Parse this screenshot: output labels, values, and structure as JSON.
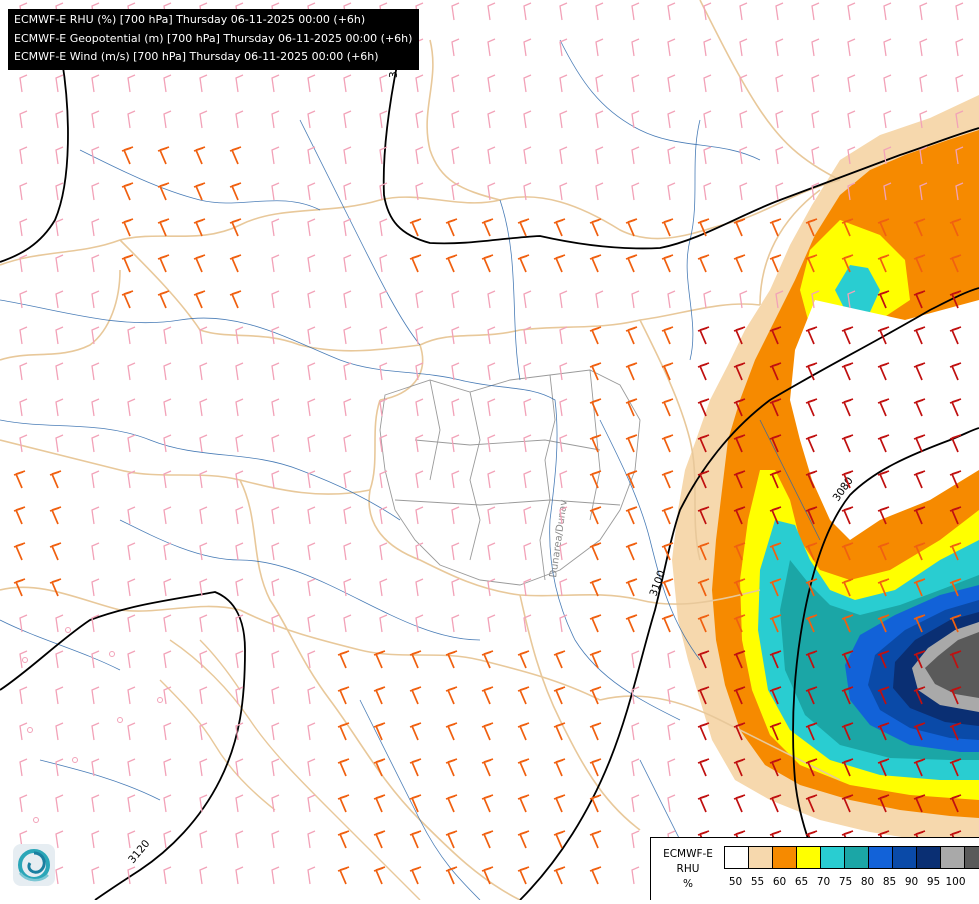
{
  "map": {
    "titles": [
      "ECMWF-E RHU (%) [700 hPa] Thursday 06-11-2025 00:00 (+6h)",
      "ECMWF-E Geopotential (m) [700 hPa] Thursday 06-11-2025 00:00 (+6h)",
      "ECMWF-E Wind (m/s) [700 hPa] Thursday 06-11-2025 00:00 (+6h)"
    ],
    "contour_labels": [
      "3120",
      "3100",
      "3080",
      "3"
    ],
    "river_label": "Dunarea/Dunav",
    "colors": {
      "border": "#e8c89a",
      "inner_border": "#9a9a9a",
      "river": "#2a66aa",
      "contour": "#000000",
      "barb_weak": "#f2a2b8",
      "barb_mid": "#f06010",
      "barb_strong": "#c01010",
      "barb_light": "#f5c0d0"
    }
  },
  "legend": {
    "title_line1": "ECMWF-E",
    "title_line2": "RHU",
    "unit": "%",
    "levels": [
      "50",
      "55",
      "60",
      "65",
      "70",
      "75",
      "80",
      "85",
      "90",
      "95",
      "100"
    ],
    "colors": [
      "#ffffff",
      "#f6d8ad",
      "#f68a00",
      "#ffff00",
      "#29cdd1",
      "#1ba6a6",
      "#1262d8",
      "#0a4aa8",
      "#0a2f73",
      "#a9a9a9",
      "#5a5a5a"
    ]
  },
  "logo": {
    "name": "ecmwf-logo"
  }
}
